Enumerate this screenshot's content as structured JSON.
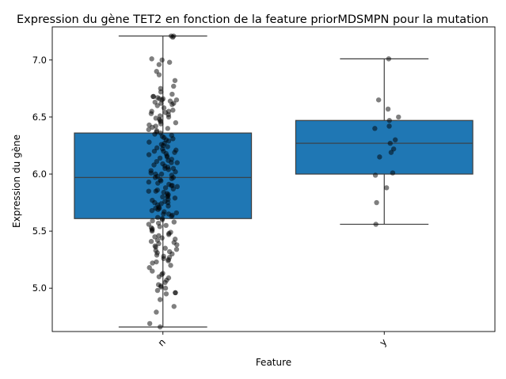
{
  "chart_data": {
    "type": "box",
    "title": "Expression du gène TET2 en fonction de la feature priorMDSMPN pour la mutation",
    "xlabel": "Feature",
    "ylabel": "Expression du gène",
    "categories": [
      "n",
      "y"
    ],
    "ylim": [
      4.62,
      7.29
    ],
    "yticks": [
      5.0,
      5.5,
      6.0,
      6.5,
      7.0
    ],
    "ytick_labels": [
      "5.0",
      "5.5",
      "6.0",
      "6.5",
      "7.0"
    ],
    "grid": false,
    "box_color": "#1f77b4",
    "point_color": "#000000",
    "boxes": [
      {
        "category": "n",
        "whisker_low": 4.66,
        "q1": 5.61,
        "median": 5.97,
        "q3": 6.36,
        "whisker_high": 7.21
      },
      {
        "category": "y",
        "whisker_low": 5.56,
        "q1": 6.0,
        "median": 6.27,
        "q3": 6.47,
        "whisker_high": 7.01
      }
    ],
    "points": [
      {
        "category": "y",
        "values": [
          7.01,
          6.65,
          6.57,
          6.5,
          6.47,
          6.42,
          6.4,
          6.3,
          6.27,
          6.22,
          6.19,
          6.15,
          6.01,
          5.99,
          5.88,
          5.75,
          5.56
        ]
      },
      {
        "category": "n",
        "values": [
          7.21,
          7.21,
          7.2,
          7.01,
          7.0,
          6.98,
          6.96,
          6.9,
          6.87,
          6.82,
          6.77,
          6.75,
          6.72,
          6.7,
          6.68,
          6.68,
          6.67,
          6.66,
          6.66,
          6.65,
          6.65,
          6.64,
          6.63,
          6.62,
          6.62,
          6.61,
          6.6,
          6.58,
          6.56,
          6.55,
          6.55,
          6.54,
          6.53,
          6.52,
          6.51,
          6.5,
          6.49,
          6.48,
          6.47,
          6.46,
          6.45,
          6.44,
          6.43,
          6.42,
          6.41,
          6.4,
          6.39,
          6.38,
          6.37,
          6.36,
          6.35,
          6.34,
          6.33,
          6.32,
          6.31,
          6.3,
          6.29,
          6.28,
          6.27,
          6.26,
          6.25,
          6.24,
          6.23,
          6.22,
          6.21,
          6.2,
          6.2,
          6.19,
          6.18,
          6.17,
          6.16,
          6.15,
          6.14,
          6.13,
          6.12,
          6.11,
          6.1,
          6.1,
          6.09,
          6.08,
          6.07,
          6.06,
          6.05,
          6.05,
          6.04,
          6.03,
          6.02,
          6.01,
          6.0,
          6.0,
          5.99,
          5.98,
          5.97,
          5.97,
          5.96,
          5.95,
          5.94,
          5.93,
          5.92,
          5.91,
          5.9,
          5.9,
          5.89,
          5.88,
          5.87,
          5.86,
          5.85,
          5.85,
          5.84,
          5.83,
          5.82,
          5.81,
          5.8,
          5.8,
          5.79,
          5.78,
          5.77,
          5.76,
          5.75,
          5.75,
          5.74,
          5.73,
          5.72,
          5.71,
          5.7,
          5.7,
          5.69,
          5.68,
          5.67,
          5.66,
          5.65,
          5.65,
          5.64,
          5.63,
          5.62,
          5.61,
          5.6,
          5.59,
          5.58,
          5.57,
          5.56,
          5.55,
          5.54,
          5.53,
          5.52,
          5.51,
          5.5,
          5.49,
          5.48,
          5.47,
          5.46,
          5.45,
          5.44,
          5.43,
          5.42,
          5.41,
          5.4,
          5.39,
          5.38,
          5.37,
          5.36,
          5.35,
          5.34,
          5.33,
          5.32,
          5.31,
          5.3,
          5.29,
          5.28,
          5.27,
          5.26,
          5.25,
          5.24,
          5.23,
          5.22,
          5.2,
          5.18,
          5.15,
          5.13,
          5.12,
          5.1,
          5.09,
          5.07,
          5.05,
          5.03,
          5.02,
          5.01,
          5.0,
          4.98,
          4.96,
          4.96,
          4.95,
          4.9,
          4.84,
          4.79,
          4.69,
          4.66
        ]
      }
    ]
  }
}
